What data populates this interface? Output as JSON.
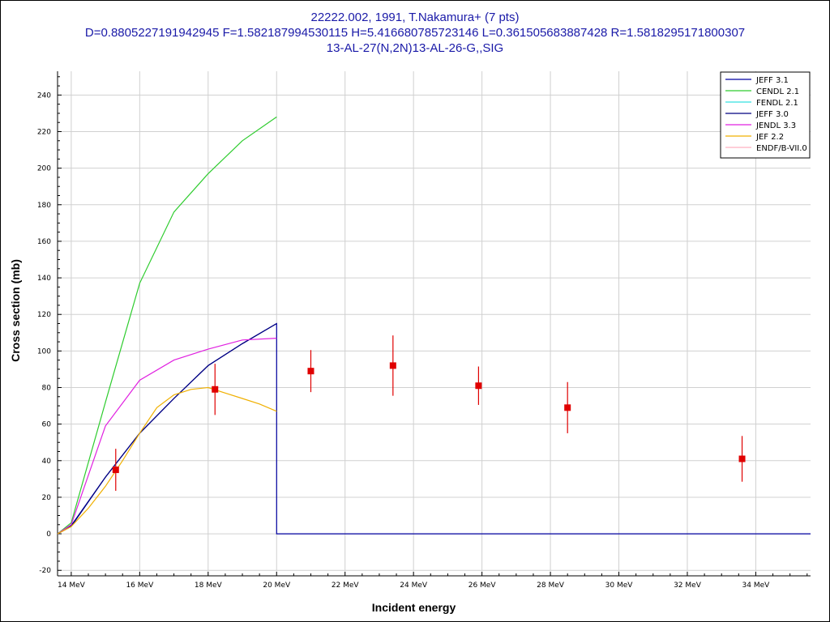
{
  "chart_data": {
    "type": "scatter",
    "title_lines": [
      "22222.002, 1991, T.Nakamura+ (7 pts)",
      "D=0.8805227191942945 F=1.582187994530115 H=5.416680785723146 L=0.361505683887428 R=1.5818295171800307",
      "13-AL-27(N,2N)13-AL-26-G,,SIG"
    ],
    "xlabel": "Incident energy",
    "ylabel": "Cross section (mb)",
    "xlim": [
      13.6,
      35.6
    ],
    "ylim": [
      -23,
      253
    ],
    "grid": true,
    "legend_placement": "top-right",
    "x_ticks": [
      14,
      16,
      18,
      20,
      22,
      24,
      26,
      28,
      30,
      32,
      34
    ],
    "x_tick_labels": [
      "14 MeV",
      "16 MeV",
      "18 MeV",
      "20 MeV",
      "22 MeV",
      "24 MeV",
      "26 MeV",
      "28 MeV",
      "30 MeV",
      "32 MeV",
      "34 MeV"
    ],
    "y_ticks": [
      -20,
      0,
      20,
      40,
      60,
      80,
      100,
      120,
      140,
      160,
      180,
      200,
      220,
      240
    ],
    "y_tick_labels": [
      "-20",
      "0",
      "20",
      "40",
      "60",
      "80",
      "100",
      "120",
      "140",
      "160",
      "180",
      "200",
      "220",
      "240"
    ],
    "series": [
      {
        "name": "JEFF 3.1",
        "color": "#0000a0",
        "x": [
          13.6,
          14,
          15,
          16,
          17,
          18,
          19,
          20,
          20,
          35.6
        ],
        "y": [
          0,
          4.5,
          31,
          55,
          74,
          92,
          104,
          115,
          0,
          0
        ]
      },
      {
        "name": "CENDL 2.1",
        "color": "#2ecc2e",
        "x": [
          13.6,
          14,
          15,
          16,
          17,
          18,
          19,
          20
        ],
        "y": [
          0,
          6,
          72,
          137,
          176,
          197,
          215,
          228
        ]
      },
      {
        "name": "FENDL 2.1",
        "color": "#33e0e0",
        "x": [],
        "y": []
      },
      {
        "name": "JEFF 3.0",
        "color": "#000080",
        "x": [
          13.6,
          14,
          15,
          16,
          17,
          18,
          19,
          20
        ],
        "y": [
          0,
          4,
          31,
          55,
          74,
          92,
          104,
          115
        ]
      },
      {
        "name": "JENDL 3.3",
        "color": "#e020e0",
        "x": [
          13.6,
          14,
          15,
          16,
          17,
          18,
          19,
          20
        ],
        "y": [
          0,
          5,
          59,
          84,
          95,
          101,
          106,
          107
        ]
      },
      {
        "name": "JEF 2.2",
        "color": "#f0b000",
        "x": [
          13.6,
          14,
          14.5,
          15,
          15.5,
          16,
          16.5,
          17,
          17.5,
          18,
          18.5,
          19,
          19.5,
          20
        ],
        "y": [
          0,
          4,
          14,
          26,
          40,
          55,
          69,
          76,
          79,
          80,
          77,
          74,
          71,
          67
        ]
      },
      {
        "name": "ENDF/B-VII.0",
        "color": "#ffb0c0",
        "x": [],
        "y": []
      }
    ],
    "experimental": {
      "color": "#e00000",
      "x": [
        15.3,
        18.2,
        21.0,
        23.4,
        25.9,
        28.5,
        33.6
      ],
      "y": [
        35,
        79,
        89,
        92,
        81,
        69,
        41
      ],
      "yerr": [
        11.5,
        14,
        11.5,
        16.5,
        10.5,
        14,
        12.5
      ]
    }
  }
}
